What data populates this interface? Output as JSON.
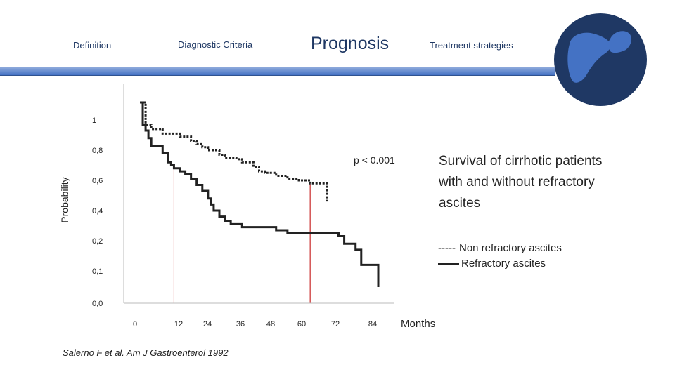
{
  "nav": {
    "items": [
      "Definition",
      "Diagnostic Criteria",
      "Prognosis",
      "Treatment strategies"
    ],
    "active": "Prognosis"
  },
  "logo": {
    "icon": "liver-icon",
    "bg_color": "#1f3864",
    "icon_color": "#4472c4"
  },
  "chart_title": {
    "lines": [
      "Survival of cirrhotic patients",
      "with and without refractory",
      "ascites"
    ]
  },
  "legend": {
    "non_refractory": "Non refractory ascites",
    "non_refractory_marker": "-----",
    "refractory": "Refractory ascites"
  },
  "citation": "Salerno F et al. Am J Gastroenterol 1992",
  "chart_data": {
    "type": "line",
    "xlabel": "Months",
    "ylabel": "Probability",
    "x_ticks": [
      "0",
      "12",
      "24",
      "36",
      "48",
      "60",
      "72",
      "84"
    ],
    "y_ticks": [
      "0,0",
      "0,1",
      "0,2",
      "0,4",
      "0,6",
      "0,8",
      "1"
    ],
    "annotation": "p < 0.001",
    "reference_lines_x": [
      12,
      60
    ],
    "series": [
      {
        "name": "Non refractory ascites",
        "style": "dashed",
        "points": [
          [
            0,
            1.04
          ],
          [
            2,
            0.97
          ],
          [
            4,
            0.94
          ],
          [
            8,
            0.91
          ],
          [
            14,
            0.89
          ],
          [
            18,
            0.86
          ],
          [
            20,
            0.84
          ],
          [
            22,
            0.82
          ],
          [
            24,
            0.8
          ],
          [
            28,
            0.77
          ],
          [
            30,
            0.75
          ],
          [
            34,
            0.74
          ],
          [
            36,
            0.72
          ],
          [
            40,
            0.69
          ],
          [
            42,
            0.66
          ],
          [
            44,
            0.65
          ],
          [
            48,
            0.63
          ],
          [
            52,
            0.61
          ],
          [
            56,
            0.6
          ],
          [
            60,
            0.58
          ],
          [
            66,
            0.58
          ],
          [
            66,
            0.46
          ]
        ]
      },
      {
        "name": "Refractory ascites",
        "style": "solid",
        "points": [
          [
            0,
            1.04
          ],
          [
            1,
            0.97
          ],
          [
            2,
            0.93
          ],
          [
            3,
            0.88
          ],
          [
            4,
            0.83
          ],
          [
            8,
            0.78
          ],
          [
            10,
            0.72
          ],
          [
            11,
            0.7
          ],
          [
            12,
            0.68
          ],
          [
            14,
            0.66
          ],
          [
            16,
            0.64
          ],
          [
            18,
            0.61
          ],
          [
            20,
            0.57
          ],
          [
            22,
            0.53
          ],
          [
            24,
            0.48
          ],
          [
            25,
            0.44
          ],
          [
            26,
            0.4
          ],
          [
            28,
            0.36
          ],
          [
            30,
            0.33
          ],
          [
            32,
            0.31
          ],
          [
            36,
            0.29
          ],
          [
            48,
            0.27
          ],
          [
            52,
            0.25
          ],
          [
            70,
            0.23
          ],
          [
            72,
            0.19
          ],
          [
            76,
            0.17
          ],
          [
            78,
            0.12
          ],
          [
            84,
            0.11
          ],
          [
            84,
            0.05
          ]
        ]
      }
    ]
  }
}
